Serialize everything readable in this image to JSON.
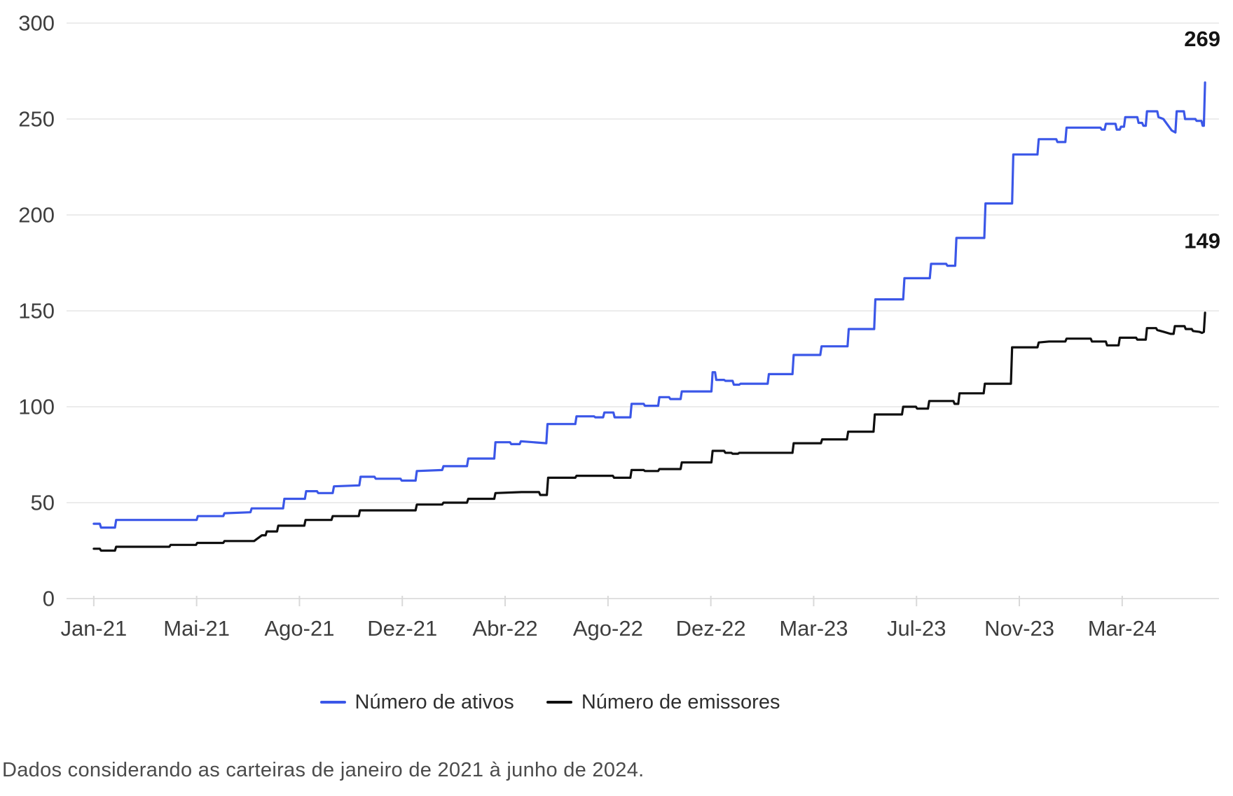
{
  "footer": {
    "note": "Dados considerando as carteiras de janeiro de 2021 à junho de 2024."
  },
  "chart_data": {
    "type": "line",
    "title": "",
    "xlabel": "",
    "ylabel": "",
    "grid": "horizontal",
    "legend_position": "bottom-center",
    "colors": {
      "ativos_line": "#3b57e8",
      "emissores_line": "#0f0f0f",
      "gridline": "#ececec",
      "axis_line": "#e0e0e0",
      "tick_mark": "#d9d9d9",
      "axis_text": "#3e3e3e",
      "value_label_text": "#141414"
    },
    "y_axis": {
      "range": [
        0,
        300
      ],
      "ticks": [
        0,
        50,
        100,
        150,
        200,
        250,
        300
      ]
    },
    "x_axis": {
      "unit": "week-index from Jan-2021",
      "range": [
        -4.5,
        186
      ],
      "tick_positions": [
        0,
        17,
        34,
        51,
        68,
        85,
        102,
        119,
        136,
        153,
        170
      ],
      "tick_labels": [
        "Jan-21",
        "Mai-21",
        "Ago-21",
        "Dez-21",
        "Abr-22",
        "Ago-22",
        "Dez-22",
        "Mar-23",
        "Jul-23",
        "Nov-23",
        "Mar-24"
      ]
    },
    "series": [
      {
        "name": "Número de ativos",
        "color": "#3b57e8",
        "end_label": "269",
        "end_label_dy": -52,
        "points": [
          [
            0,
            39
          ],
          [
            1,
            39
          ],
          [
            1.2,
            37
          ],
          [
            3.5,
            37
          ],
          [
            3.7,
            41
          ],
          [
            17,
            41
          ],
          [
            17.2,
            43
          ],
          [
            21.4,
            43
          ],
          [
            21.6,
            44.5
          ],
          [
            25.9,
            45
          ],
          [
            26.1,
            47
          ],
          [
            31.3,
            47
          ],
          [
            31.5,
            52
          ],
          [
            34.9,
            52
          ],
          [
            35.1,
            56
          ],
          [
            36.9,
            56
          ],
          [
            37.1,
            55
          ],
          [
            39.5,
            55
          ],
          [
            39.7,
            58.5
          ],
          [
            43.9,
            59
          ],
          [
            44.1,
            63.5
          ],
          [
            46.4,
            63.5
          ],
          [
            46.6,
            62.5
          ],
          [
            50.7,
            62.5
          ],
          [
            50.9,
            61.5
          ],
          [
            53.2,
            61.5
          ],
          [
            53.4,
            66.5
          ],
          [
            57.6,
            67
          ],
          [
            57.8,
            69
          ],
          [
            61.7,
            69
          ],
          [
            61.9,
            73
          ],
          [
            66.2,
            73
          ],
          [
            66.4,
            81.5
          ],
          [
            68.8,
            81.5
          ],
          [
            69,
            80.5
          ],
          [
            70.4,
            80.5
          ],
          [
            70.6,
            82
          ],
          [
            74.8,
            81
          ],
          [
            75,
            91
          ],
          [
            79.6,
            91
          ],
          [
            79.8,
            95
          ],
          [
            82.7,
            95
          ],
          [
            82.9,
            94.5
          ],
          [
            84.2,
            94.5
          ],
          [
            84.4,
            97
          ],
          [
            85.9,
            97
          ],
          [
            86.1,
            94.5
          ],
          [
            88.7,
            94.5
          ],
          [
            88.9,
            101.5
          ],
          [
            90.9,
            101.5
          ],
          [
            91.1,
            100.5
          ],
          [
            93.3,
            100.5
          ],
          [
            93.5,
            105
          ],
          [
            95.1,
            105
          ],
          [
            95.3,
            104
          ],
          [
            97,
            104
          ],
          [
            97.2,
            108
          ],
          [
            102.1,
            108
          ],
          [
            102.3,
            118
          ],
          [
            102.7,
            118
          ],
          [
            102.9,
            114
          ],
          [
            104.2,
            114
          ],
          [
            104.4,
            113.5
          ],
          [
            105.6,
            113.5
          ],
          [
            105.8,
            111.5
          ],
          [
            106.7,
            111.5
          ],
          [
            106.9,
            112
          ],
          [
            111.4,
            112
          ],
          [
            111.6,
            117
          ],
          [
            115.5,
            117
          ],
          [
            115.7,
            127
          ],
          [
            120.1,
            127
          ],
          [
            120.3,
            131.5
          ],
          [
            124.6,
            131.5
          ],
          [
            124.8,
            140.5
          ],
          [
            129,
            140.5
          ],
          [
            129.2,
            156
          ],
          [
            133.8,
            156
          ],
          [
            134,
            167
          ],
          [
            138.2,
            167
          ],
          [
            138.4,
            174.5
          ],
          [
            140.9,
            174.5
          ],
          [
            141.1,
            173.5
          ],
          [
            142.4,
            173.5
          ],
          [
            142.6,
            188
          ],
          [
            147.2,
            188
          ],
          [
            147.4,
            206
          ],
          [
            151.8,
            206
          ],
          [
            152,
            231.5
          ],
          [
            156,
            231.5
          ],
          [
            156.2,
            239.5
          ],
          [
            159.1,
            239.5
          ],
          [
            159.3,
            238
          ],
          [
            160.6,
            238
          ],
          [
            160.8,
            245.5
          ],
          [
            166.4,
            245.5
          ],
          [
            166.6,
            244.5
          ],
          [
            167.1,
            244.5
          ],
          [
            167.3,
            247.5
          ],
          [
            168.9,
            247.5
          ],
          [
            169.1,
            244.5
          ],
          [
            169.6,
            244.5
          ],
          [
            169.8,
            246
          ],
          [
            170.3,
            246
          ],
          [
            170.5,
            251
          ],
          [
            172.5,
            251
          ],
          [
            172.7,
            248
          ],
          [
            173.3,
            248
          ],
          [
            173.5,
            246.5
          ],
          [
            173.9,
            246.5
          ],
          [
            174.1,
            254
          ],
          [
            175.8,
            254
          ],
          [
            176,
            251
          ],
          [
            176.8,
            250
          ],
          [
            178.2,
            244
          ],
          [
            178.8,
            243
          ],
          [
            179,
            254
          ],
          [
            180.2,
            254
          ],
          [
            180.4,
            250
          ],
          [
            182.1,
            250
          ],
          [
            182.3,
            249
          ],
          [
            183.1,
            249
          ],
          [
            183.3,
            246.5
          ],
          [
            183.5,
            246.5
          ],
          [
            183.7,
            269
          ]
        ]
      },
      {
        "name": "Número de emissores",
        "color": "#0f0f0f",
        "end_label": "149",
        "end_label_dy": -92,
        "points": [
          [
            0,
            26
          ],
          [
            1,
            26
          ],
          [
            1.2,
            25
          ],
          [
            3.5,
            25
          ],
          [
            3.7,
            27
          ],
          [
            12.5,
            27
          ],
          [
            12.7,
            28
          ],
          [
            16.9,
            28
          ],
          [
            17.1,
            29
          ],
          [
            21.4,
            29
          ],
          [
            21.6,
            30
          ],
          [
            26.5,
            30
          ],
          [
            27.8,
            33
          ],
          [
            28.4,
            33
          ],
          [
            28.6,
            35
          ],
          [
            30.3,
            35
          ],
          [
            30.5,
            38
          ],
          [
            34.8,
            38
          ],
          [
            35,
            41
          ],
          [
            39.3,
            41
          ],
          [
            39.5,
            43
          ],
          [
            43.8,
            43
          ],
          [
            44,
            46
          ],
          [
            53.2,
            46
          ],
          [
            53.4,
            49
          ],
          [
            57.6,
            49
          ],
          [
            57.8,
            50
          ],
          [
            61.7,
            50
          ],
          [
            61.9,
            52
          ],
          [
            66.2,
            52
          ],
          [
            66.4,
            55
          ],
          [
            70.7,
            55.5
          ],
          [
            73.6,
            55.5
          ],
          [
            73.8,
            54
          ],
          [
            74.9,
            54
          ],
          [
            75.1,
            63
          ],
          [
            79.6,
            63
          ],
          [
            79.8,
            64
          ],
          [
            85.8,
            64
          ],
          [
            86,
            63
          ],
          [
            88.7,
            63
          ],
          [
            88.9,
            67
          ],
          [
            90.9,
            67
          ],
          [
            91.1,
            66.5
          ],
          [
            93.3,
            66.5
          ],
          [
            93.5,
            67.5
          ],
          [
            97,
            67.5
          ],
          [
            97.2,
            71
          ],
          [
            102.1,
            71
          ],
          [
            102.3,
            77
          ],
          [
            104.2,
            77
          ],
          [
            104.4,
            76
          ],
          [
            105.4,
            76
          ],
          [
            105.6,
            75.5
          ],
          [
            106.5,
            75.5
          ],
          [
            106.7,
            76
          ],
          [
            115.5,
            76
          ],
          [
            115.7,
            81
          ],
          [
            120.2,
            81
          ],
          [
            120.4,
            83
          ],
          [
            124.5,
            83
          ],
          [
            124.7,
            87
          ],
          [
            128.9,
            87
          ],
          [
            129.1,
            96
          ],
          [
            133.6,
            96
          ],
          [
            133.8,
            100
          ],
          [
            135.9,
            100
          ],
          [
            136.1,
            99
          ],
          [
            137.9,
            99
          ],
          [
            138.1,
            103
          ],
          [
            142.1,
            103
          ],
          [
            142.3,
            101.5
          ],
          [
            142.9,
            101.5
          ],
          [
            143.1,
            107
          ],
          [
            147.1,
            107
          ],
          [
            147.3,
            112
          ],
          [
            151.6,
            112
          ],
          [
            151.8,
            131
          ],
          [
            156,
            131
          ],
          [
            156.2,
            133.5
          ],
          [
            157.9,
            134
          ],
          [
            160.6,
            134
          ],
          [
            160.8,
            135.5
          ],
          [
            164.8,
            135.5
          ],
          [
            165,
            134
          ],
          [
            167.3,
            134
          ],
          [
            167.5,
            132
          ],
          [
            169.4,
            132
          ],
          [
            169.6,
            136
          ],
          [
            172.3,
            136
          ],
          [
            172.5,
            135
          ],
          [
            173.9,
            135
          ],
          [
            174.1,
            141
          ],
          [
            175.6,
            141
          ],
          [
            175.8,
            140
          ],
          [
            176.9,
            139
          ],
          [
            178,
            138
          ],
          [
            178.5,
            138
          ],
          [
            178.7,
            142
          ],
          [
            180.3,
            142
          ],
          [
            180.5,
            140.5
          ],
          [
            181.5,
            140.5
          ],
          [
            181.7,
            139.5
          ],
          [
            182.8,
            139
          ],
          [
            183.2,
            138.5
          ],
          [
            183.5,
            139
          ],
          [
            183.7,
            149
          ]
        ]
      }
    ]
  }
}
